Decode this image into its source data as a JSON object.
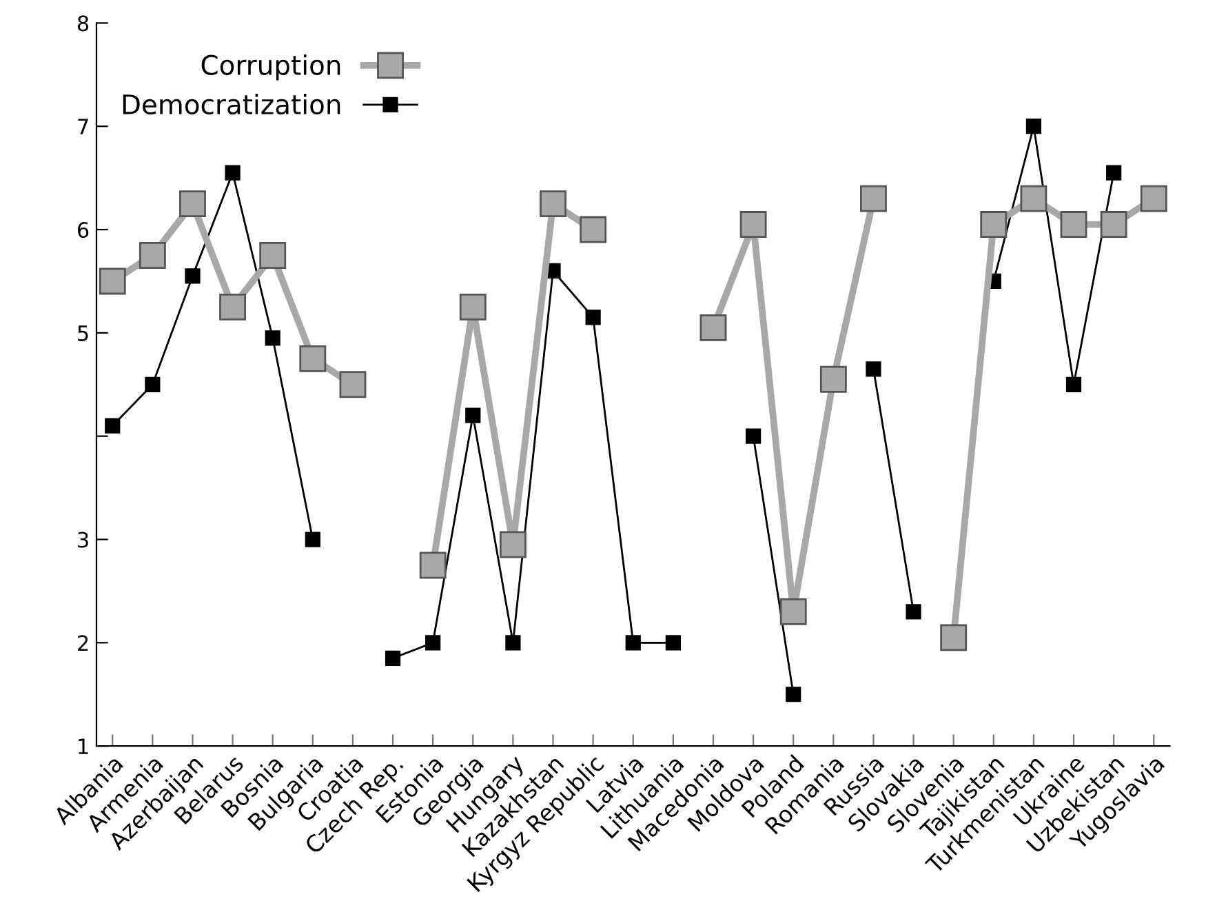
{
  "chart_data": {
    "type": "line",
    "categories": [
      "Albania",
      "Armenia",
      "Azerbaijan",
      "Belarus",
      "Bosnia",
      "Bulgaria",
      "Croatia",
      "Czech Rep.",
      "Estonia",
      "Georgia",
      "Hungary",
      "Kazakhstan",
      "Kyrgyz Republic",
      "Latvia",
      "Lithuania",
      "Macedonia",
      "Moldova",
      "Poland",
      "Romania",
      "Russia",
      "Slovakia",
      "Slovenia",
      "Tajikistan",
      "Turkmenistan",
      "Ukraine",
      "Uzbekistan",
      "Yugoslavia"
    ],
    "series": [
      {
        "name": "Corruption",
        "color": "#a8a8a8",
        "values": [
          5.5,
          5.75,
          6.25,
          5.25,
          5.75,
          4.75,
          4.5,
          null,
          2.75,
          5.25,
          2.95,
          6.25,
          6.0,
          null,
          null,
          5.05,
          6.05,
          2.3,
          4.55,
          6.3,
          null,
          2.05,
          6.05,
          6.3,
          6.05,
          6.05,
          6.3
        ]
      },
      {
        "name": "Democratization",
        "color": "#000000",
        "values": [
          4.1,
          4.5,
          5.55,
          6.55,
          4.95,
          3.0,
          null,
          1.85,
          2.0,
          4.2,
          2.0,
          5.6,
          5.15,
          2.0,
          2.0,
          null,
          4.0,
          1.5,
          null,
          4.65,
          2.3,
          null,
          5.5,
          7.0,
          4.5,
          6.55,
          null
        ]
      }
    ],
    "ylim": [
      1,
      8
    ],
    "yticks": [
      1,
      2,
      3,
      {
        "value": 4,
        "label": null
      },
      5,
      6,
      7,
      8
    ],
    "marker": "square",
    "legend": "top left",
    "grid": false
  }
}
